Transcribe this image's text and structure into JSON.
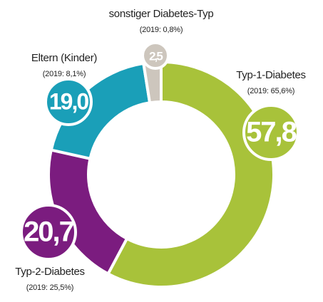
{
  "chart_data": {
    "type": "donut",
    "categories": [
      "Typ-1-Diabetes",
      "Typ-2-Diabetes",
      "Eltern (Kinder)",
      "sonstiger Diabetes-Typ"
    ],
    "values": [
      57.8,
      20.7,
      19.0,
      2.5
    ],
    "value_labels": [
      "57,8",
      "20,7",
      "19,0",
      "2,5"
    ],
    "prior_labels": [
      "(2019: 65,6%)",
      "(2019: 25,5%)",
      "(2019: 8,1%)",
      "(2019: 0,8%)"
    ],
    "colors": [
      "#a8c23a",
      "#7b1c7f",
      "#1a9fb8",
      "#cdc6bd"
    ]
  }
}
